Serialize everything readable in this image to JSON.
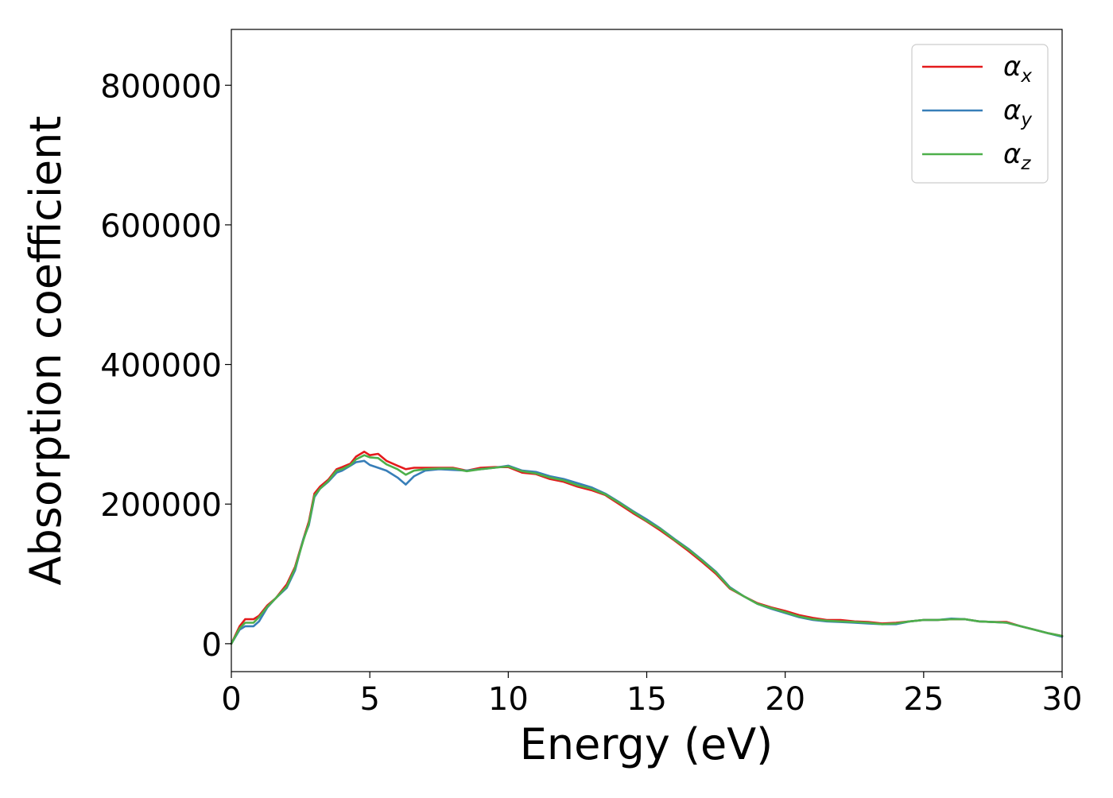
{
  "chart_data": {
    "type": "line",
    "title": "",
    "xlabel": "Energy (eV)",
    "ylabel": "Absorption coefficient",
    "xlim": [
      0,
      30
    ],
    "ylim": [
      -40000,
      880000
    ],
    "xticks": [
      0,
      5,
      10,
      15,
      20,
      25,
      30
    ],
    "xtick_labels": [
      "0",
      "5",
      "10",
      "15",
      "20",
      "25",
      "30"
    ],
    "yticks": [
      0,
      200000,
      400000,
      600000,
      800000
    ],
    "ytick_labels": [
      "0",
      "200000",
      "400000",
      "600000",
      "800000"
    ],
    "grid": false,
    "legend_position": "top-right",
    "x": [
      0,
      0.3,
      0.5,
      0.8,
      1.0,
      1.3,
      1.6,
      2.0,
      2.3,
      2.6,
      2.8,
      3.0,
      3.2,
      3.5,
      3.8,
      4.0,
      4.3,
      4.5,
      4.8,
      5.0,
      5.3,
      5.6,
      6.0,
      6.3,
      6.6,
      7.0,
      7.5,
      8.0,
      8.5,
      9.0,
      9.5,
      10.0,
      10.5,
      11.0,
      11.5,
      12.0,
      12.5,
      13.0,
      13.5,
      14.0,
      14.5,
      15.0,
      15.5,
      16.0,
      16.5,
      17.0,
      17.5,
      18.0,
      18.5,
      19.0,
      19.5,
      20.0,
      20.5,
      21.0,
      21.5,
      22.0,
      22.5,
      23.0,
      23.5,
      24.0,
      24.5,
      25.0,
      25.5,
      26.0,
      26.5,
      27.0,
      27.5,
      28.0,
      28.5,
      29.0,
      29.5,
      30.0
    ],
    "series": [
      {
        "name": "α",
        "subscript": "x",
        "color": "#e41a1c",
        "values": [
          0,
          25000,
          35000,
          35000,
          40000,
          55000,
          65000,
          85000,
          110000,
          150000,
          175000,
          215000,
          225000,
          235000,
          250000,
          253000,
          258000,
          268000,
          275000,
          270000,
          272000,
          262000,
          255000,
          250000,
          252000,
          252000,
          252000,
          252000,
          248000,
          252000,
          253000,
          253000,
          245000,
          243000,
          236000,
          232000,
          225000,
          220000,
          213000,
          200000,
          187000,
          175000,
          162000,
          148000,
          133000,
          117000,
          100000,
          79000,
          68000,
          58000,
          52000,
          47000,
          41000,
          37000,
          34000,
          34000,
          32000,
          31000,
          29000,
          30000,
          32000,
          34000,
          34000,
          35000,
          35000,
          32000,
          31000,
          31000,
          25000,
          20000,
          15000,
          11000
        ]
      },
      {
        "name": "α",
        "subscript": "y",
        "color": "#377eb8",
        "values": [
          0,
          20000,
          25000,
          25000,
          32000,
          52000,
          65000,
          80000,
          105000,
          150000,
          170000,
          210000,
          222000,
          232000,
          245000,
          248000,
          255000,
          260000,
          262000,
          256000,
          252000,
          248000,
          238000,
          228000,
          240000,
          248000,
          250000,
          249000,
          248000,
          250000,
          252000,
          255000,
          248000,
          246000,
          240000,
          236000,
          230000,
          224000,
          215000,
          203000,
          190000,
          178000,
          165000,
          150000,
          136000,
          120000,
          103000,
          81000,
          68000,
          57000,
          50000,
          44000,
          38000,
          34000,
          32000,
          31000,
          30000,
          29000,
          28000,
          28000,
          32000,
          34000,
          34000,
          36000,
          35000,
          32000,
          31000,
          30000,
          25000,
          20000,
          15000,
          10000
        ]
      },
      {
        "name": "α",
        "subscript": "z",
        "color": "#4daf4a",
        "values": [
          0,
          22000,
          30000,
          30000,
          38000,
          53000,
          65000,
          82000,
          108000,
          148000,
          172000,
          212000,
          222000,
          233000,
          248000,
          250000,
          256000,
          264000,
          270000,
          267000,
          266000,
          257000,
          250000,
          242000,
          248000,
          250000,
          251000,
          251000,
          247000,
          250000,
          252000,
          254000,
          247000,
          244000,
          238000,
          234000,
          227000,
          222000,
          214000,
          202000,
          189000,
          176000,
          164000,
          149000,
          135000,
          119000,
          102000,
          80000,
          68000,
          57000,
          51000,
          45000,
          39000,
          35000,
          33000,
          32000,
          31000,
          30000,
          28000,
          29000,
          32000,
          34000,
          34000,
          35000,
          35000,
          32000,
          31000,
          30000,
          25000,
          20000,
          15000,
          11000
        ]
      }
    ]
  }
}
